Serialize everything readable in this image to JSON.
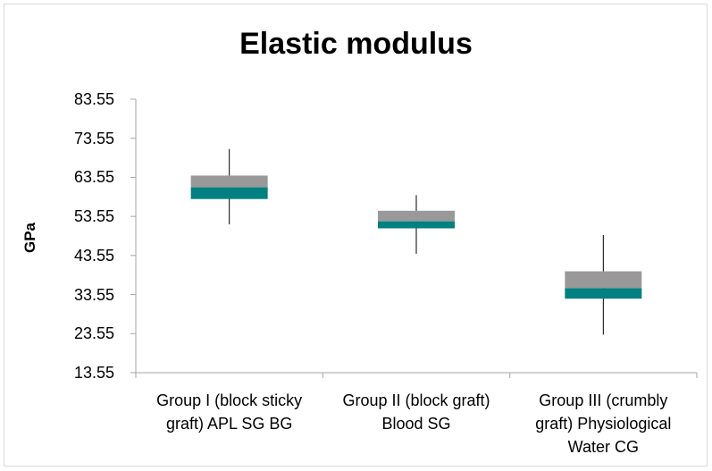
{
  "chart_data": {
    "type": "boxplot",
    "title": "Elastic modulus",
    "xlabel": "",
    "ylabel": "GPa",
    "ylim": [
      13.55,
      83.55
    ],
    "yticks": [
      "83.55",
      "73.55",
      "63.55",
      "53.55",
      "43.55",
      "33.55",
      "23.55",
      "13.55"
    ],
    "categories": [
      "Group I (block sticky graft) APL SG  BG",
      "Group II (block graft) Blood SG",
      "Group III (crumbly graft)  Physiological Water CG"
    ],
    "category_lines": [
      [
        "Group I (block sticky",
        "graft) APL SG  BG"
      ],
      [
        "Group II (block graft)",
        "Blood SG"
      ],
      [
        "Group III (crumbly",
        "graft)  Physiological",
        "Water CG"
      ]
    ],
    "boxes": [
      {
        "min": 51.5,
        "q1": 58.0,
        "median": 61.0,
        "q3": 64.0,
        "max": 70.8
      },
      {
        "min": 44.0,
        "q1": 50.5,
        "median": 52.3,
        "q3": 55.0,
        "max": 59.0
      },
      {
        "min": 23.3,
        "q1": 32.5,
        "median": 35.2,
        "q3": 39.5,
        "max": 48.8
      }
    ],
    "colors": {
      "lower_box": "#008080",
      "upper_box": "#999999",
      "whisker": "#000000",
      "axis": "#a6a6a6"
    },
    "grid": false,
    "legend": "none"
  }
}
